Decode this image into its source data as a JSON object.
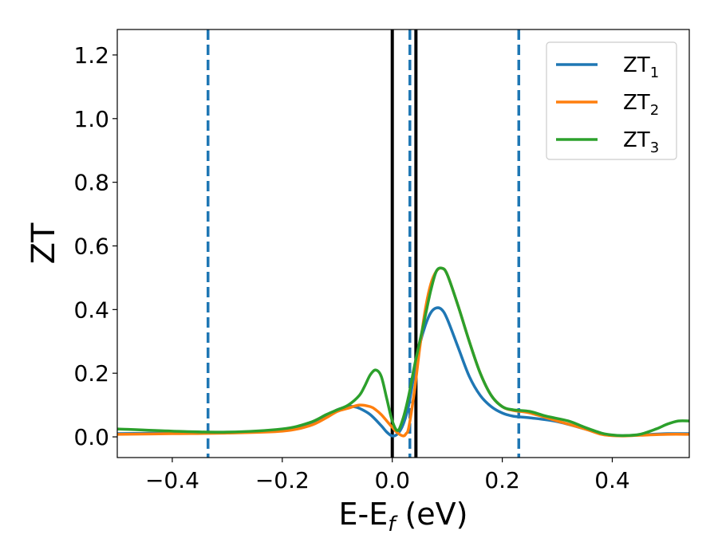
{
  "chart_data": {
    "type": "line",
    "xlabel": {
      "main": "E-E",
      "sub": "f",
      "unit": " (eV)"
    },
    "ylabel": "ZT",
    "xlim": [
      -0.5,
      0.54
    ],
    "ylim": [
      -0.065,
      1.28
    ],
    "xticks": [
      -0.4,
      -0.2,
      0.0,
      0.2,
      0.4
    ],
    "xtick_labels": [
      "−0.4",
      "−0.2",
      "0.0",
      "0.2",
      "0.4"
    ],
    "yticks": [
      0.0,
      0.2,
      0.4,
      0.6,
      0.8,
      1.0,
      1.2
    ],
    "ytick_labels": [
      "0.0",
      "0.2",
      "0.4",
      "0.6",
      "0.8",
      "1.0",
      "1.2"
    ],
    "grid": false,
    "legend": "top-right",
    "series": [
      {
        "name": "ZT",
        "sub": "1",
        "color": "#1f77b4",
        "x": [
          -0.5,
          -0.4,
          -0.3,
          -0.2,
          -0.15,
          -0.12,
          -0.1,
          -0.08,
          -0.07,
          -0.06,
          -0.04,
          -0.02,
          -0.01,
          0.0,
          0.01,
          0.02,
          0.03,
          0.04,
          0.05,
          0.06,
          0.07,
          0.08,
          0.09,
          0.1,
          0.12,
          0.14,
          0.16,
          0.18,
          0.2,
          0.22,
          0.25,
          0.3,
          0.35,
          0.38,
          0.4,
          0.42,
          0.45,
          0.5,
          0.54
        ],
        "y": [
          0.01,
          0.012,
          0.014,
          0.02,
          0.04,
          0.065,
          0.085,
          0.095,
          0.095,
          0.09,
          0.07,
          0.035,
          0.015,
          0.003,
          0.01,
          0.04,
          0.1,
          0.2,
          0.29,
          0.35,
          0.39,
          0.405,
          0.4,
          0.37,
          0.28,
          0.19,
          0.13,
          0.095,
          0.075,
          0.065,
          0.06,
          0.048,
          0.025,
          0.01,
          0.005,
          0.004,
          0.006,
          0.01,
          0.01
        ]
      },
      {
        "name": "ZT",
        "sub": "2",
        "color": "#ff7f0e",
        "x": [
          -0.5,
          -0.4,
          -0.3,
          -0.2,
          -0.15,
          -0.12,
          -0.1,
          -0.08,
          -0.06,
          -0.04,
          -0.03,
          -0.02,
          -0.01,
          0.0,
          0.01,
          0.02,
          0.025,
          0.03,
          0.04,
          0.05,
          0.06,
          0.07,
          0.08,
          0.09,
          0.1,
          0.12,
          0.14,
          0.16,
          0.18,
          0.2,
          0.22,
          0.25,
          0.3,
          0.35,
          0.38,
          0.4,
          0.42,
          0.45,
          0.5,
          0.54
        ],
        "y": [
          0.008,
          0.01,
          0.012,
          0.018,
          0.035,
          0.06,
          0.08,
          0.09,
          0.1,
          0.095,
          0.085,
          0.07,
          0.05,
          0.03,
          0.012,
          0.003,
          0.01,
          0.03,
          0.14,
          0.28,
          0.4,
          0.48,
          0.52,
          0.53,
          0.51,
          0.41,
          0.3,
          0.2,
          0.13,
          0.095,
          0.083,
          0.075,
          0.05,
          0.025,
          0.008,
          0.004,
          0.003,
          0.005,
          0.008,
          0.008
        ]
      },
      {
        "name": "ZT",
        "sub": "3",
        "color": "#2ca02c",
        "x": [
          -0.5,
          -0.4,
          -0.3,
          -0.2,
          -0.15,
          -0.12,
          -0.1,
          -0.08,
          -0.06,
          -0.05,
          -0.04,
          -0.03,
          -0.02,
          -0.01,
          0.0,
          0.01,
          0.02,
          0.03,
          0.04,
          0.05,
          0.06,
          0.07,
          0.08,
          0.09,
          0.1,
          0.12,
          0.14,
          0.16,
          0.18,
          0.2,
          0.22,
          0.25,
          0.28,
          0.32,
          0.35,
          0.38,
          0.4,
          0.42,
          0.45,
          0.48,
          0.5,
          0.52,
          0.54
        ],
        "y": [
          0.025,
          0.018,
          0.015,
          0.025,
          0.045,
          0.07,
          0.085,
          0.1,
          0.13,
          0.16,
          0.195,
          0.21,
          0.19,
          0.12,
          0.05,
          0.02,
          0.06,
          0.13,
          0.22,
          0.3,
          0.38,
          0.46,
          0.52,
          0.53,
          0.51,
          0.41,
          0.3,
          0.2,
          0.13,
          0.095,
          0.085,
          0.08,
          0.065,
          0.05,
          0.03,
          0.012,
          0.006,
          0.004,
          0.008,
          0.025,
          0.04,
          0.05,
          0.05
        ]
      }
    ],
    "vlines": [
      {
        "x": -0.335,
        "style": "dashed",
        "color": "#1f77b4"
      },
      {
        "x": 0.032,
        "style": "dashed",
        "color": "#1f77b4"
      },
      {
        "x": 0.23,
        "style": "dashed",
        "color": "#1f77b4"
      },
      {
        "x": 0.0,
        "style": "solid",
        "color": "#000000"
      },
      {
        "x": 0.043,
        "style": "solid",
        "color": "#000000"
      }
    ]
  }
}
